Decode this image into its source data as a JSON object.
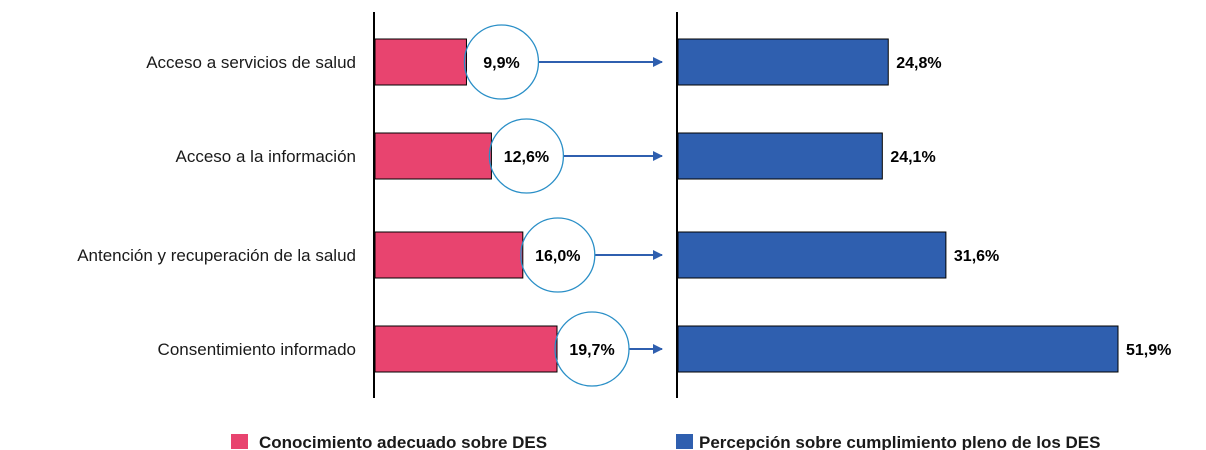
{
  "chart_data": {
    "type": "bar",
    "orientation": "horizontal",
    "categories": [
      "Acceso a servicios de salud",
      "Acceso a la información",
      "Antención y recuperación de la salud",
      "Consentimiento informado"
    ],
    "series": [
      {
        "name": "Conocimiento adecuado sobre DES",
        "values": [
          9.9,
          12.6,
          16.0,
          19.7
        ],
        "labels": [
          "9,9%",
          "12,6%",
          "16,0%",
          "19,7%"
        ],
        "color": "#e8446f"
      },
      {
        "name": "Percepción sobre cumplimiento pleno de los DES",
        "values": [
          24.8,
          24.1,
          31.6,
          51.9
        ],
        "labels": [
          "24,8%",
          "24,1%",
          "31,6%",
          "51,9%"
        ],
        "color": "#2f5faf"
      }
    ],
    "legend_position": "bottom",
    "grid": false,
    "annotations": "circled values on the first series with arrows pointing to the second series"
  }
}
